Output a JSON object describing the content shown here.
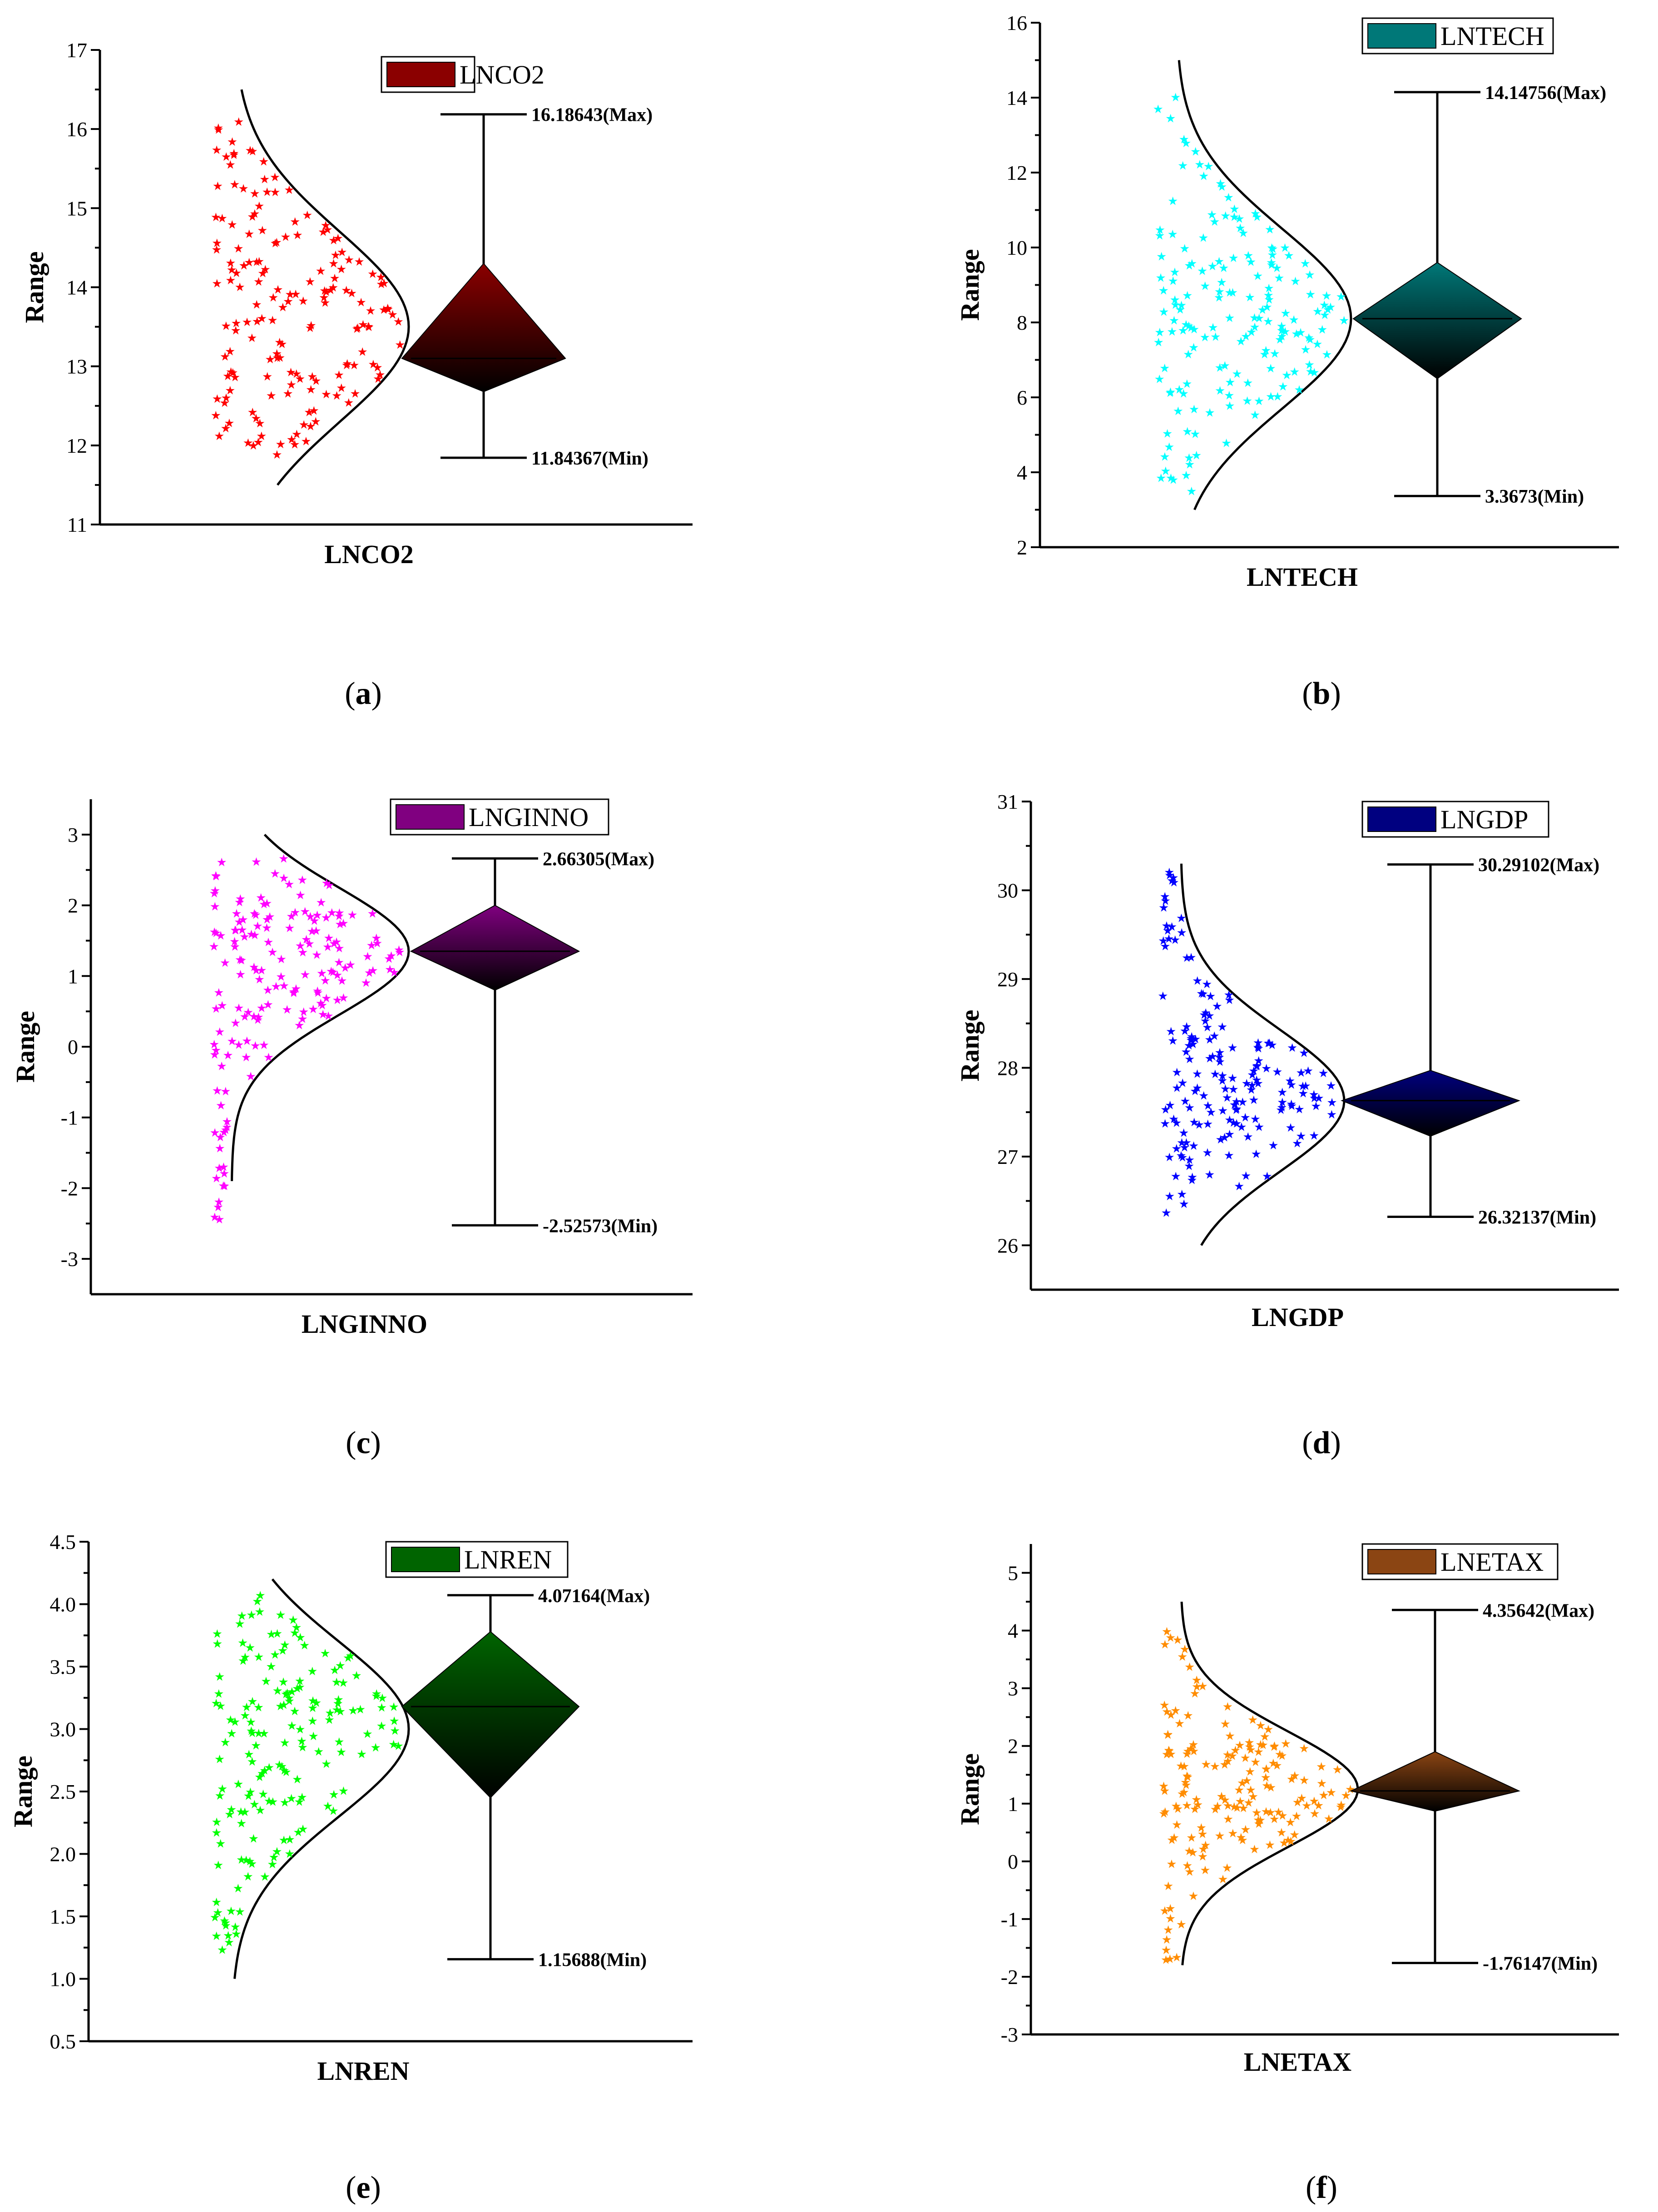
{
  "figure": {
    "panels": [
      {
        "id": "a",
        "caption_letter": "a"
      },
      {
        "id": "b",
        "caption_letter": "b"
      },
      {
        "id": "c",
        "caption_letter": "c"
      },
      {
        "id": "d",
        "caption_letter": "d"
      },
      {
        "id": "e",
        "caption_letter": "e"
      },
      {
        "id": "f",
        "caption_letter": "f"
      }
    ]
  },
  "chart_data": [
    {
      "type": "scatter",
      "panel": "a",
      "title": "",
      "legend": "LNCO2",
      "xlabel": "LNCO2",
      "ylabel": "Range",
      "ylim": [
        11,
        17
      ],
      "yticks": [
        "11",
        "12",
        "13",
        "14",
        "15",
        "16",
        "17"
      ],
      "color": "#ff0000",
      "box_color": "#8b0000",
      "max": 16.18643,
      "min": 11.84367,
      "max_label": "16.18643(Max)",
      "min_label": "11.84367(Min)",
      "q1": 12.68,
      "q3": 14.3,
      "median": 13.1,
      "curve_range": [
        11.5,
        16.5
      ],
      "curve_mean": 13.5,
      "curve_sd": 1.2
    },
    {
      "type": "scatter",
      "panel": "b",
      "title": "",
      "legend": "LNTECH",
      "xlabel": "LNTECH",
      "ylabel": "Range",
      "ylim": [
        2,
        16
      ],
      "yticks": [
        "2",
        "4",
        "6",
        "8",
        "10",
        "12",
        "14",
        "16"
      ],
      "color": "#00ffff",
      "box_color": "#007878",
      "max": 14.14756,
      "min": 3.3673,
      "max_label": "14.14756(Max)",
      "min_label": "3.3673(Min)",
      "q1": 6.5,
      "q3": 9.6,
      "median": 8.1,
      "curve_range": [
        3,
        15
      ],
      "curve_mean": 8.1,
      "curve_sd": 2.4
    },
    {
      "type": "scatter",
      "panel": "c",
      "title": "",
      "legend": "LNGINNO",
      "xlabel": "LNGINNO",
      "ylabel": "Range",
      "ylim": [
        -3.5,
        3.5
      ],
      "yticks": [
        "-3",
        "-2",
        "-1",
        "0",
        "1",
        "2",
        "3"
      ],
      "color": "#ff00ff",
      "box_color": "#800080",
      "max": 2.66305,
      "min": -2.52573,
      "max_label": "2.66305(Max)",
      "min_label": "-2.52573(Min)",
      "q1": 0.8,
      "q3": 2.0,
      "median": 1.35,
      "curve_range": [
        -1.9,
        3.0
      ],
      "curve_mean": 1.35,
      "curve_sd": 0.9
    },
    {
      "type": "scatter",
      "panel": "d",
      "title": "",
      "legend": "LNGDP",
      "xlabel": "LNGDP",
      "ylabel": "Range",
      "ylim": [
        25.5,
        31
      ],
      "yticks": [
        "26",
        "27",
        "28",
        "29",
        "30",
        "31"
      ],
      "color": "#0000ff",
      "box_color": "#000080",
      "max": 30.29102,
      "min": 26.32137,
      "max_label": "30.29102(Max)",
      "min_label": "26.32137(Min)",
      "q1": 27.23,
      "q3": 27.97,
      "median": 27.63,
      "curve_range": [
        26.0,
        30.3
      ],
      "curve_mean": 27.63,
      "curve_sd": 0.8
    },
    {
      "type": "scatter",
      "panel": "e",
      "title": "",
      "legend": "LNREN",
      "xlabel": "LNREN",
      "ylabel": "Range",
      "ylim": [
        0.5,
        4.5
      ],
      "yticks": [
        "0.5",
        "1.0",
        "1.5",
        "2.0",
        "2.5",
        "3.0",
        "3.5",
        "4.0",
        "4.5"
      ],
      "color": "#00ff00",
      "box_color": "#006400",
      "max": 4.07164,
      "min": 1.15688,
      "max_label": "4.07164(Max)",
      "min_label": "1.15688(Min)",
      "q1": 2.45,
      "q3": 3.78,
      "median": 3.18,
      "curve_range": [
        1.0,
        4.2
      ],
      "curve_mean": 3.0,
      "curve_sd": 0.7
    },
    {
      "type": "scatter",
      "panel": "f",
      "title": "",
      "legend": "LNETAX",
      "xlabel": "LNETAX",
      "ylabel": "Range",
      "ylim": [
        -3,
        5.5
      ],
      "yticks": [
        "-3",
        "-2",
        "-1",
        "0",
        "1",
        "2",
        "3",
        "4",
        "5"
      ],
      "color": "#ff8c00",
      "box_color": "#8b4513",
      "max": 4.35642,
      "min": -1.76147,
      "max_label": "4.35642(Max)",
      "min_label": "-1.76147(Min)",
      "q1": 0.87,
      "q3": 1.9,
      "median": 1.22,
      "curve_range": [
        -1.8,
        4.5
      ],
      "curve_mean": 1.25,
      "curve_sd": 1.0
    }
  ]
}
